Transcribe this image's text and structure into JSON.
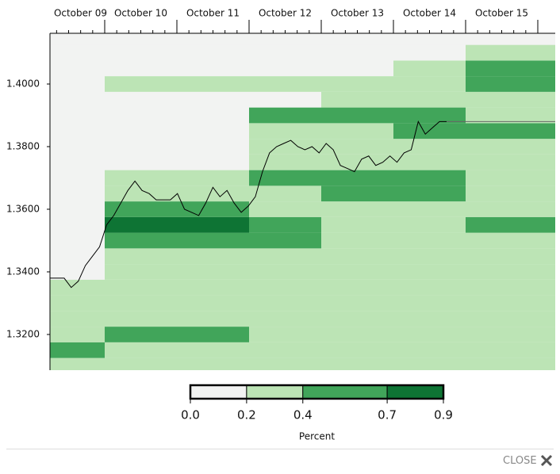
{
  "chart_data": {
    "type": "heatmap",
    "categories": [
      "October 09",
      "October 10",
      "October 11",
      "October 12",
      "October 13",
      "October 14",
      "October 15"
    ],
    "y": [
      1.31,
      1.315,
      1.32,
      1.325,
      1.33,
      1.335,
      1.34,
      1.345,
      1.35,
      1.355,
      1.36,
      1.365,
      1.37,
      1.375,
      1.38,
      1.385,
      1.39,
      1.395,
      1.4,
      1.405,
      1.41,
      1.415
    ],
    "z": [
      [
        0.3,
        0.3,
        0.3,
        0.3,
        0.3,
        0.3,
        0.3
      ],
      [
        0.5,
        0.3,
        0.3,
        0.3,
        0.3,
        0.3,
        0.3
      ],
      [
        0.3,
        0.5,
        0.5,
        0.3,
        0.3,
        0.3,
        0.3
      ],
      [
        0.3,
        0.3,
        0.3,
        0.3,
        0.3,
        0.3,
        0.3
      ],
      [
        0.3,
        0.3,
        0.3,
        0.3,
        0.3,
        0.3,
        0.3
      ],
      [
        0.3,
        0.3,
        0.3,
        0.3,
        0.3,
        0.3,
        0.3
      ],
      [
        0.1,
        0.3,
        0.3,
        0.3,
        0.3,
        0.3,
        0.3
      ],
      [
        0.1,
        0.3,
        0.3,
        0.3,
        0.3,
        0.3,
        0.3
      ],
      [
        0.1,
        0.5,
        0.5,
        0.5,
        0.3,
        0.3,
        0.3
      ],
      [
        0.1,
        0.8,
        0.8,
        0.5,
        0.3,
        0.3,
        0.5
      ],
      [
        0.1,
        0.5,
        0.5,
        0.3,
        0.3,
        0.3,
        0.3
      ],
      [
        0.1,
        0.3,
        0.3,
        0.3,
        0.5,
        0.5,
        0.3
      ],
      [
        0.1,
        0.3,
        0.3,
        0.5,
        0.5,
        0.6,
        0.3
      ],
      [
        0.1,
        0.1,
        0.1,
        0.3,
        0.3,
        0.3,
        0.3
      ],
      [
        0.1,
        0.1,
        0.1,
        0.3,
        0.3,
        0.3,
        0.3
      ],
      [
        0.1,
        0.1,
        0.1,
        0.3,
        0.3,
        0.5,
        0.5
      ],
      [
        0.1,
        0.1,
        0.1,
        0.5,
        0.5,
        0.5,
        0.3
      ],
      [
        0.1,
        0.1,
        0.1,
        0.1,
        0.3,
        0.3,
        0.3
      ],
      [
        0.1,
        0.3,
        0.3,
        0.3,
        0.3,
        0.3,
        0.5
      ],
      [
        0.1,
        0.1,
        0.1,
        0.1,
        0.1,
        0.3,
        0.5
      ],
      [
        0.1,
        0.1,
        0.1,
        0.1,
        0.1,
        0.1,
        0.3
      ],
      [
        0.1,
        0.1,
        0.1,
        0.1,
        0.1,
        0.1,
        0.1
      ]
    ],
    "price": {
      "color": "#000000",
      "values": [
        1.338,
        1.338,
        1.338,
        1.335,
        1.337,
        1.342,
        1.345,
        1.348,
        1.355,
        1.358,
        1.362,
        1.366,
        1.369,
        1.366,
        1.365,
        1.363,
        1.363,
        1.363,
        1.365,
        1.36,
        1.359,
        1.358,
        1.362,
        1.367,
        1.364,
        1.366,
        1.362,
        1.359,
        1.361,
        1.364,
        1.372,
        1.378,
        1.38,
        1.381,
        1.382,
        1.38,
        1.379,
        1.38,
        1.378,
        1.381,
        1.379,
        1.374,
        1.373,
        1.372,
        1.376,
        1.377,
        1.374,
        1.375,
        1.377,
        1.375,
        1.378,
        1.379,
        1.388,
        1.384,
        1.386,
        1.388,
        1.388
      ]
    },
    "ylim": [
      1.3086,
      1.4162
    ],
    "yticks": [
      {
        "value": 1.32,
        "label": "1.3200"
      },
      {
        "value": 1.34,
        "label": "1.3400"
      },
      {
        "value": 1.36,
        "label": "1.3600"
      },
      {
        "value": 1.38,
        "label": "1.3800"
      },
      {
        "value": 1.4,
        "label": "1.4000"
      }
    ],
    "colorbar": {
      "label": "Percent",
      "ticks": [
        {
          "value": 0,
          "label": "0.0"
        },
        0.2,
        0.4,
        0.7,
        0.9
      ],
      "colors": [
        "#f2f3f2",
        "#bce4b5",
        "#41a55a",
        "#0e7434"
      ]
    },
    "close_button": "CLOSE"
  }
}
